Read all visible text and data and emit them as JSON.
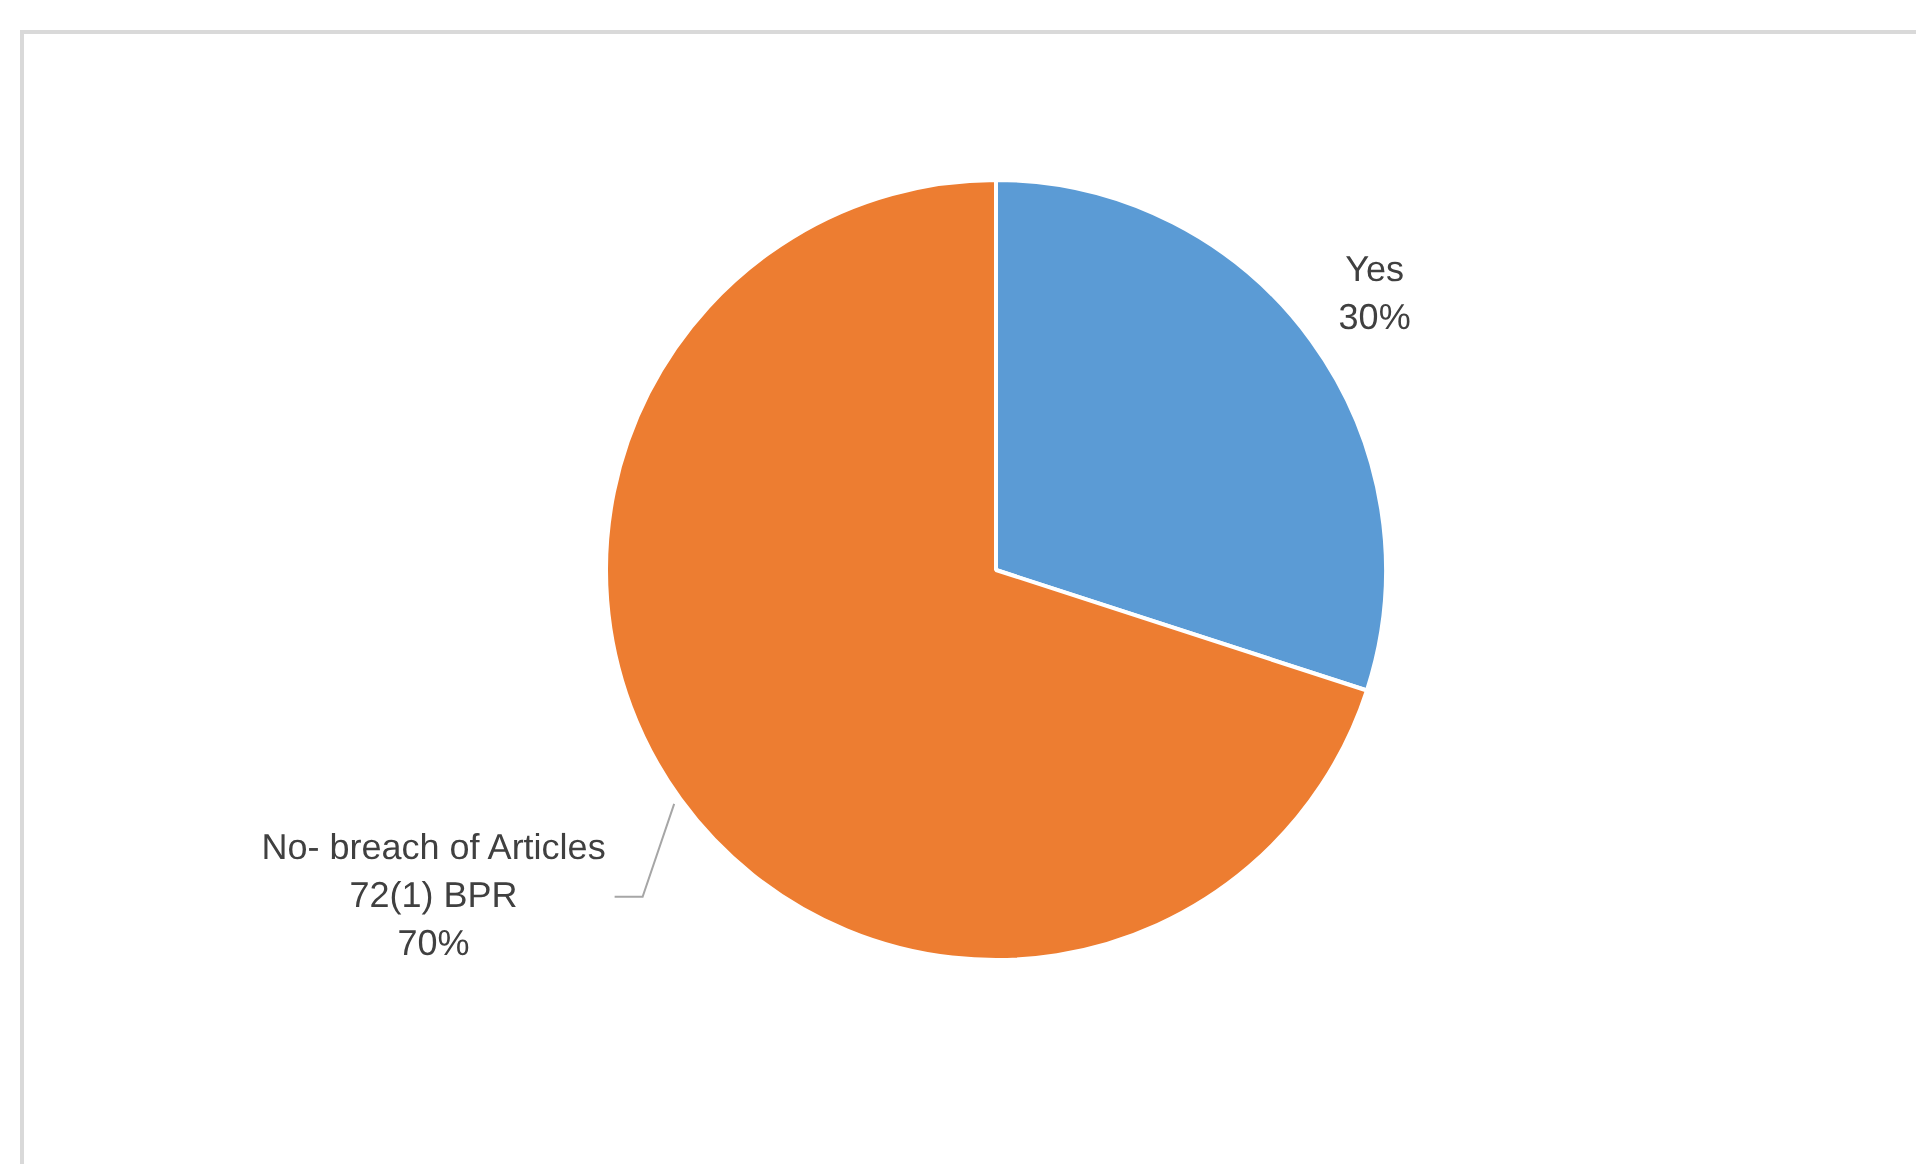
{
  "chart_data": {
    "type": "pie",
    "categories": [
      "Yes",
      "No- breach of Articles 72(1) BPR"
    ],
    "values": [
      30,
      70
    ],
    "colors": [
      "#5b9bd5",
      "#ed7d31"
    ],
    "value_labels": [
      "30%",
      "70%"
    ],
    "legend": false
  }
}
